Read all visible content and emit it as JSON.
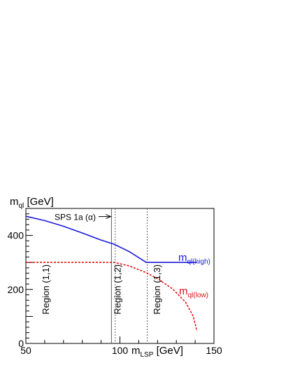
{
  "chart_data": {
    "type": "line",
    "title": "",
    "ylabel": {
      "main": "m",
      "sub": "ql",
      "unit": " [GeV]"
    },
    "xlabel": {
      "main": "m",
      "sub": "LSP",
      "unit": " [GeV]"
    },
    "xlim": [
      50,
      150
    ],
    "ylim": [
      0,
      500
    ],
    "xticks": [
      50,
      100,
      150
    ],
    "yticks": [
      0,
      200,
      400
    ],
    "grid": false,
    "series": [
      {
        "name": "m_ql(high)",
        "label_main": "m",
        "label_sub": "ql(high)",
        "color": "#1a1adb",
        "style": "solid",
        "x": [
          50,
          60,
          70,
          80,
          90,
          97,
          105,
          114,
          125,
          141
        ],
        "y": [
          471,
          455,
          434,
          409,
          383,
          367,
          340,
          300,
          300,
          300
        ]
      },
      {
        "name": "m_ql(low)",
        "label_main": "m",
        "label_sub": "ql(low)",
        "color": "#e01010",
        "style": "dotted",
        "x": [
          50,
          70,
          90,
          97,
          105,
          114,
          120,
          128,
          135,
          139,
          141
        ],
        "y": [
          300,
          300,
          300,
          300,
          287,
          262,
          240,
          202,
          152,
          100,
          45
        ]
      }
    ],
    "vertical_lines": [
      {
        "x": 95.5,
        "style": "solid",
        "color": "#606060"
      },
      {
        "x": 97.5,
        "style": "dotted",
        "color": "#606060"
      },
      {
        "x": 114.5,
        "style": "dotted",
        "color": "#606060"
      }
    ],
    "regions": [
      {
        "label": "Region (1,1)",
        "x": 69,
        "y": 200
      },
      {
        "label": "Region (1,2)",
        "x": 107,
        "y": 200
      },
      {
        "label": "Region (1,3)",
        "x": 128,
        "y": 200
      }
    ],
    "annotation": {
      "label": "SPS 1a (α)",
      "arrow_to_x": 95.5,
      "y": 470
    }
  }
}
